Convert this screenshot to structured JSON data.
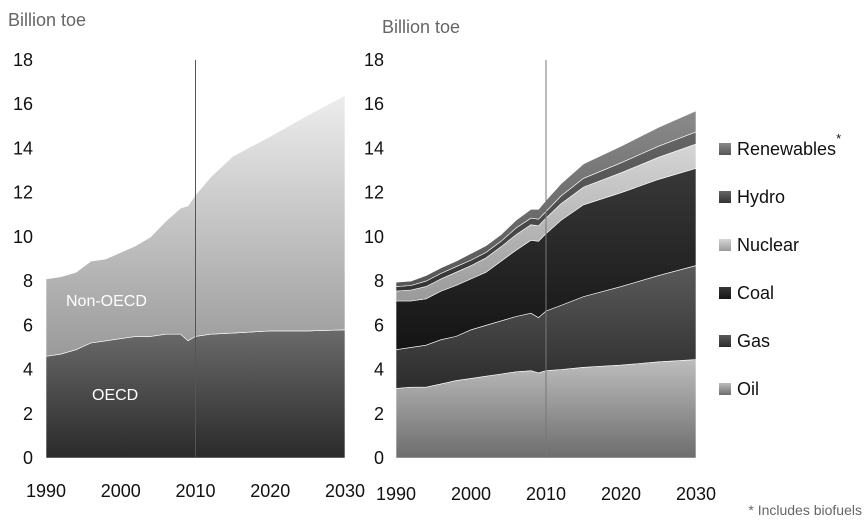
{
  "chart_data": [
    {
      "type": "area",
      "stacked": true,
      "ylabel": "Billion toe",
      "ylim": [
        0,
        18
      ],
      "yticks": [
        "0",
        "2",
        "4",
        "6",
        "8",
        "10",
        "12",
        "14",
        "16",
        "18"
      ],
      "xlim": [
        1990,
        2030
      ],
      "xticks": [
        "1990",
        "2000",
        "2010",
        "2020",
        "2030"
      ],
      "marker_line_x": 2010,
      "legend": "none",
      "grid": false,
      "x": [
        1990,
        1992,
        1994,
        1996,
        1998,
        2000,
        2002,
        2004,
        2006,
        2008,
        2009,
        2010,
        2012,
        2015,
        2020,
        2025,
        2030
      ],
      "series": [
        {
          "name": "OECD",
          "color": "#4a4a4a",
          "values": [
            4.6,
            4.7,
            4.9,
            5.2,
            5.3,
            5.4,
            5.5,
            5.5,
            5.6,
            5.6,
            5.3,
            5.5,
            5.6,
            5.65,
            5.75,
            5.75,
            5.8
          ]
        },
        {
          "name": "Non-OECD",
          "color": "#b8b8b8",
          "values": [
            3.5,
            3.5,
            3.5,
            3.7,
            3.7,
            3.9,
            4.1,
            4.5,
            5.1,
            5.7,
            6.1,
            6.4,
            7.1,
            8.0,
            8.8,
            9.75,
            10.6
          ]
        }
      ]
    },
    {
      "type": "area",
      "stacked": true,
      "ylabel": "Billion toe",
      "ylim": [
        0,
        18
      ],
      "yticks": [
        "0",
        "2",
        "4",
        "6",
        "8",
        "10",
        "12",
        "14",
        "16",
        "18"
      ],
      "xlim": [
        1990,
        2030
      ],
      "xticks": [
        "1990",
        "2000",
        "2010",
        "2020",
        "2030"
      ],
      "marker_line_x": 2010,
      "legend": "right",
      "grid": false,
      "x": [
        1990,
        1992,
        1994,
        1996,
        1998,
        2000,
        2002,
        2004,
        2006,
        2008,
        2009,
        2010,
        2012,
        2015,
        2020,
        2025,
        2030
      ],
      "series": [
        {
          "name": "Oil",
          "color": "#9b9b9b",
          "values": [
            3.15,
            3.2,
            3.2,
            3.35,
            3.5,
            3.6,
            3.7,
            3.8,
            3.9,
            3.95,
            3.85,
            3.95,
            4.0,
            4.1,
            4.2,
            4.35,
            4.45
          ]
        },
        {
          "name": "Gas",
          "color": "#3d3d3d",
          "values": [
            1.75,
            1.8,
            1.9,
            2.0,
            2.0,
            2.2,
            2.3,
            2.4,
            2.5,
            2.6,
            2.5,
            2.7,
            2.9,
            3.2,
            3.55,
            3.9,
            4.25
          ]
        },
        {
          "name": "Coal",
          "color": "#1e1e1e",
          "values": [
            2.2,
            2.1,
            2.1,
            2.2,
            2.3,
            2.3,
            2.4,
            2.7,
            3.0,
            3.3,
            3.45,
            3.5,
            3.85,
            4.15,
            4.25,
            4.35,
            4.4
          ]
        },
        {
          "name": "Nuclear",
          "color": "#a8a8a8",
          "values": [
            0.45,
            0.5,
            0.55,
            0.55,
            0.6,
            0.6,
            0.65,
            0.65,
            0.7,
            0.7,
            0.7,
            0.7,
            0.75,
            0.8,
            0.9,
            1.0,
            1.1
          ]
        },
        {
          "name": "Hydro",
          "color": "#505050",
          "values": [
            0.2,
            0.2,
            0.25,
            0.25,
            0.25,
            0.25,
            0.25,
            0.25,
            0.3,
            0.3,
            0.3,
            0.3,
            0.35,
            0.4,
            0.45,
            0.5,
            0.55
          ]
        },
        {
          "name": "Renewables*",
          "color": "#707070",
          "values": [
            0.2,
            0.2,
            0.25,
            0.25,
            0.25,
            0.3,
            0.3,
            0.3,
            0.35,
            0.4,
            0.45,
            0.5,
            0.55,
            0.65,
            0.75,
            0.85,
            0.95
          ]
        }
      ]
    }
  ],
  "left_panel": {
    "ylabel": "Billion toe",
    "area_labels": {
      "oecd": "OECD",
      "non_oecd": "Non-OECD"
    }
  },
  "right_panel": {
    "ylabel": "Billion toe",
    "legend": [
      {
        "label": "Renewables",
        "suffix": "*",
        "color": "#707070"
      },
      {
        "label": "Hydro",
        "suffix": "",
        "color": "#505050"
      },
      {
        "label": "Nuclear",
        "suffix": "",
        "color": "#a8a8a8"
      },
      {
        "label": "Coal",
        "suffix": "",
        "color": "#1e1e1e"
      },
      {
        "label": "Gas",
        "suffix": "",
        "color": "#3d3d3d"
      },
      {
        "label": "Oil",
        "suffix": "",
        "color": "#9b9b9b"
      }
    ],
    "footnote": "* Includes biofuels"
  }
}
